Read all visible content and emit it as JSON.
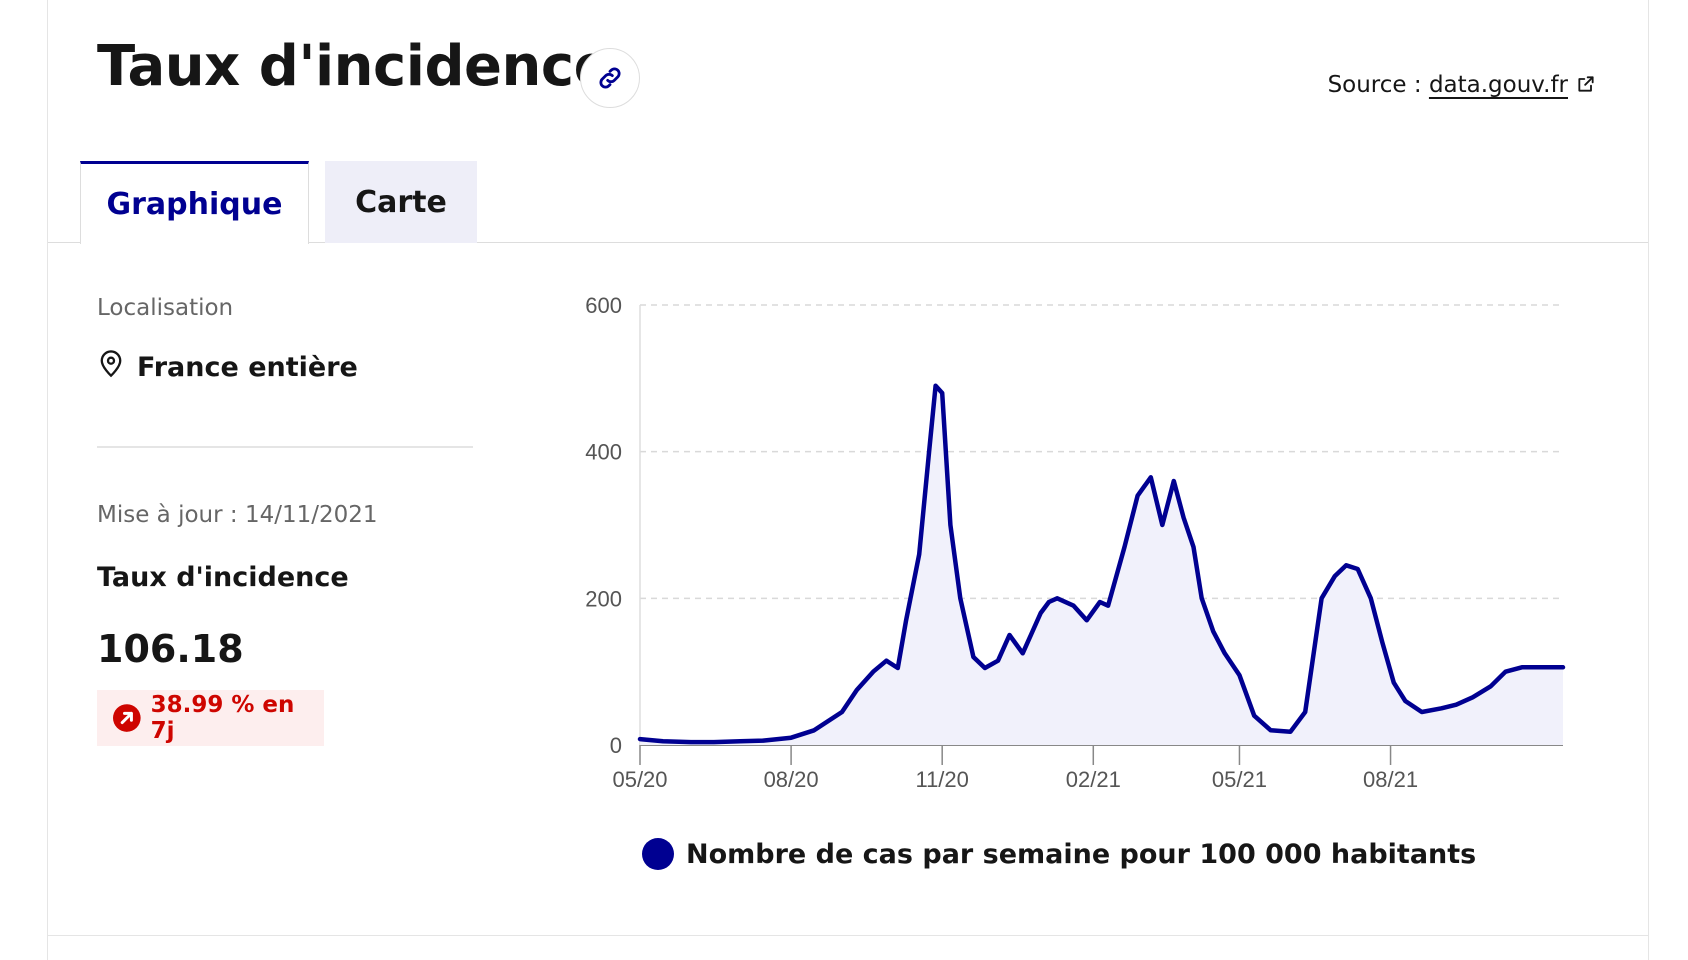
{
  "header": {
    "title": "Taux d'incidence",
    "source_prefix": "Source :",
    "source_link": "data.gouv.fr"
  },
  "tabs": [
    {
      "label": "Graphique",
      "active": true
    },
    {
      "label": "Carte",
      "active": false
    }
  ],
  "sidebar": {
    "location_label": "Localisation",
    "location_value": "France entière",
    "update_text": "Mise à jour : 14/11/2021",
    "metric_name": "Taux d'incidence",
    "metric_value": "106.18",
    "trend_text": "38.99 % en 7j"
  },
  "colors": {
    "accent": "#000091",
    "area_fill": "#f1f1fb",
    "trend_up": "#ce0500",
    "trend_bg": "#fdeeee"
  },
  "icons": [
    "link-icon",
    "external-link-icon",
    "map-pin-icon",
    "arrow-up-right-icon"
  ],
  "chart_data": {
    "type": "area",
    "title": "",
    "xlabel": "",
    "ylabel": "",
    "ylim": [
      0,
      600
    ],
    "yticks": [
      0,
      200,
      400,
      600
    ],
    "xticks": [
      "05/20",
      "08/20",
      "11/20",
      "02/21",
      "05/21",
      "08/21"
    ],
    "xlim": [
      "2020-05-01",
      "2021-11-14"
    ],
    "grid": "horizontal dashed",
    "legend_position": "bottom",
    "series": [
      {
        "name": "Nombre de cas par semaine pour 100 000 habitants",
        "color": "#000091",
        "x": [
          "2020-05-01",
          "2020-05-15",
          "2020-06-01",
          "2020-06-15",
          "2020-07-01",
          "2020-07-15",
          "2020-08-01",
          "2020-08-15",
          "2020-09-01",
          "2020-09-10",
          "2020-09-20",
          "2020-09-28",
          "2020-10-05",
          "2020-10-10",
          "2020-10-18",
          "2020-10-24",
          "2020-10-28",
          "2020-11-01",
          "2020-11-06",
          "2020-11-12",
          "2020-11-20",
          "2020-11-27",
          "2020-12-05",
          "2020-12-12",
          "2020-12-20",
          "2020-12-25",
          "2020-12-31",
          "2021-01-05",
          "2021-01-10",
          "2021-01-20",
          "2021-01-28",
          "2021-02-05",
          "2021-02-10",
          "2021-02-20",
          "2021-02-28",
          "2021-03-08",
          "2021-03-15",
          "2021-03-22",
          "2021-03-28",
          "2021-04-03",
          "2021-04-08",
          "2021-04-15",
          "2021-04-22",
          "2021-05-01",
          "2021-05-10",
          "2021-05-20",
          "2021-06-01",
          "2021-06-10",
          "2021-06-20",
          "2021-06-28",
          "2021-07-05",
          "2021-07-12",
          "2021-07-20",
          "2021-07-27",
          "2021-08-03",
          "2021-08-10",
          "2021-08-20",
          "2021-09-01",
          "2021-09-10",
          "2021-09-20",
          "2021-10-01",
          "2021-10-10",
          "2021-10-20",
          "2021-10-28",
          "2021-11-05",
          "2021-11-10",
          "2021-11-14"
        ],
        "values": [
          8,
          5,
          4,
          4,
          5,
          6,
          10,
          20,
          45,
          75,
          100,
          115,
          105,
          170,
          260,
          400,
          490,
          480,
          300,
          200,
          120,
          105,
          115,
          150,
          125,
          150,
          180,
          195,
          200,
          190,
          170,
          195,
          190,
          270,
          340,
          365,
          300,
          360,
          310,
          270,
          200,
          155,
          125,
          95,
          40,
          20,
          18,
          45,
          200,
          230,
          245,
          240,
          200,
          140,
          85,
          60,
          45,
          50,
          55,
          65,
          80,
          100,
          106,
          106,
          106,
          106,
          106
        ]
      }
    ]
  }
}
